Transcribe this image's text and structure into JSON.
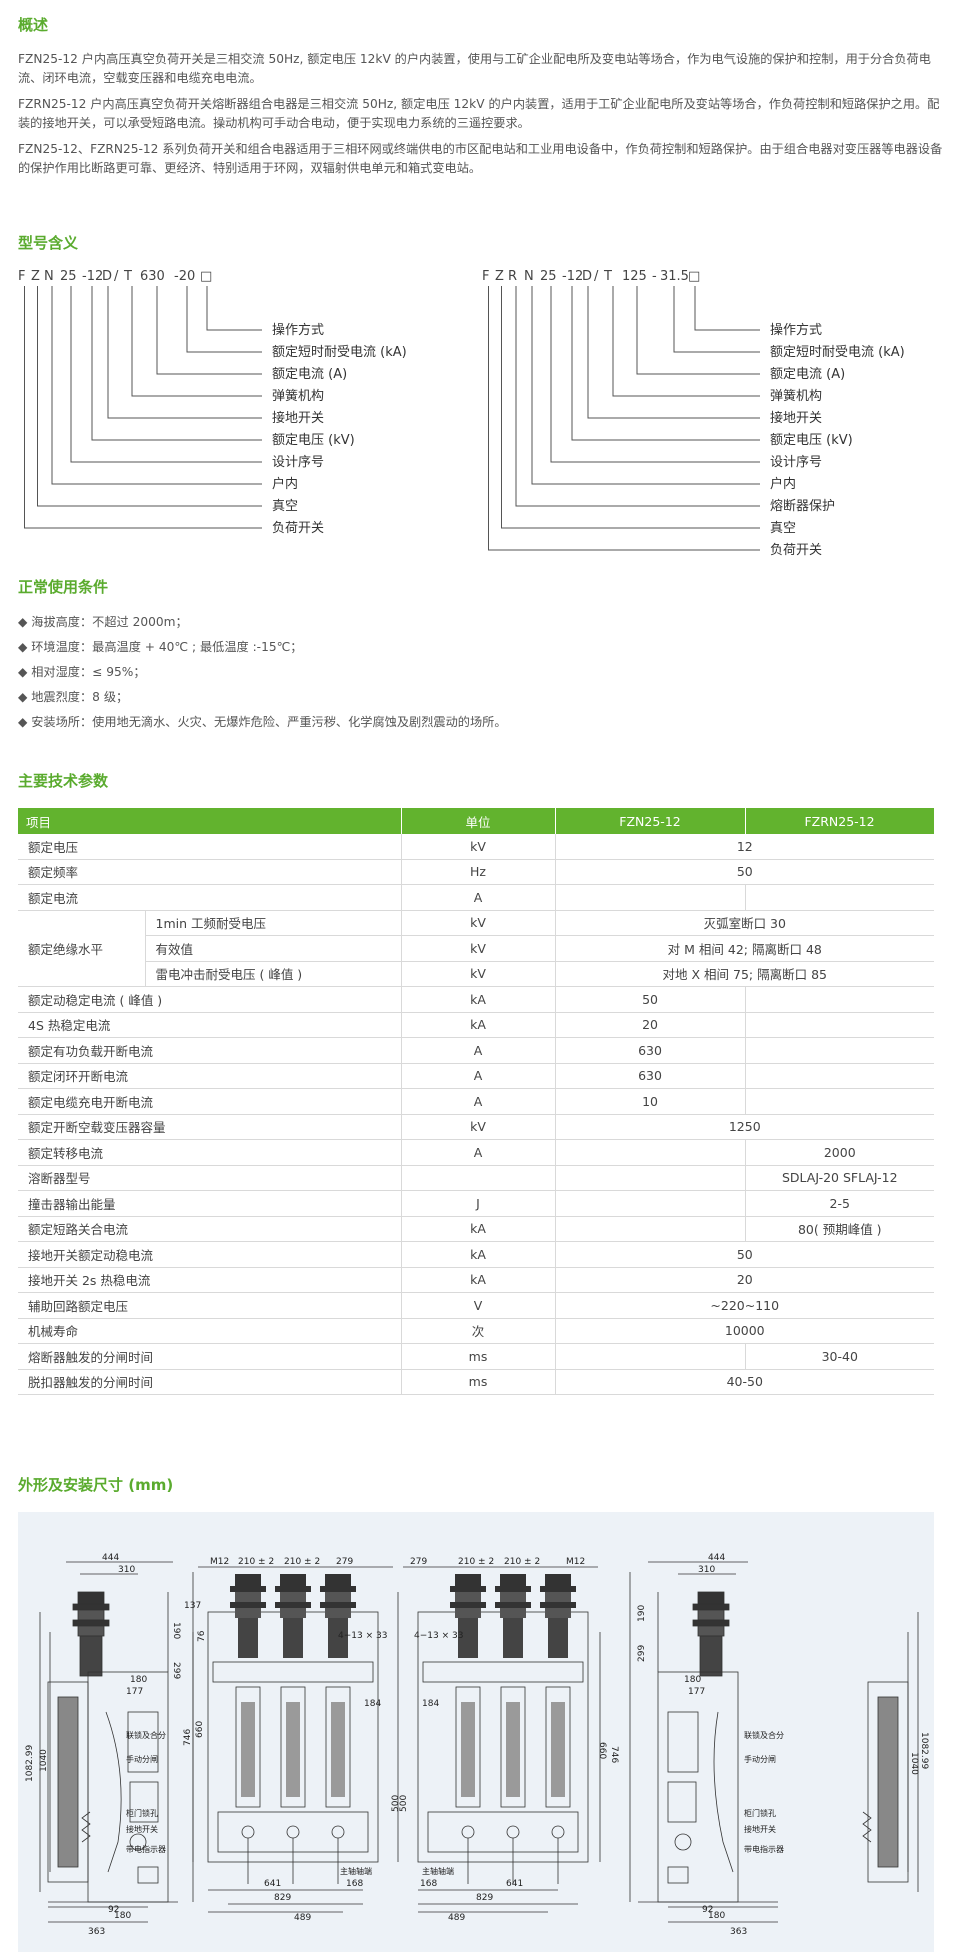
{
  "overview": {
    "title": "概述",
    "paragraphs": [
      "FZN25-12 户内高压真空负荷开关是三相交流 50Hz, 额定电压 12kV 的户内装置，使用与工矿企业配电所及变电站等场合，作为电气设施的保护和控制，用于分合负荷电流、闭环电流，空载变压器和电缆充电电流。",
      "FZRN25-12 户内高压真空负荷开关熔断器组合电器是三相交流 50Hz, 额定电压 12kV 的户内装置，适用于工矿企业配电所及变站等场合，作负荷控制和短路保护之用。配装的接地开关，可以承受短路电流。操动机构可手动合电动，便于实现电力系统的三遥控要求。",
      "FZN25-12、FZRN25-12 系列负荷开关和组合电器适用于三相环网或终端供电的市区配电站和工业用电设备中，作负荷控制和短路保护。由于组合电器对变压器等电器设备的保护作用比断路更可靠、更经济、特别适用于环网，双辐射供电单元和箱式变电站。"
    ]
  },
  "model_meaning": {
    "title": "型号含义",
    "left": {
      "code": [
        "F",
        "Z",
        "N",
        "25",
        "-12",
        "D",
        "/",
        "T",
        "630",
        "-20",
        "□"
      ],
      "labels": [
        "操作方式",
        "额定短时耐受电流 (kA)",
        "额定电流 (A)",
        "弹簧机构",
        "接地开关",
        "额定电压 (kV)",
        "设计序号",
        "户内",
        "真空",
        "负荷开关"
      ]
    },
    "right": {
      "code": [
        "F",
        "Z",
        "R",
        "N",
        "25",
        "-12",
        "D",
        "/",
        "T",
        "125",
        "-",
        "31.5",
        "□"
      ],
      "labels": [
        "操作方式",
        "额定短时耐受电流 (kA)",
        "额定电流 (A)",
        "弹簧机构",
        "接地开关",
        "额定电压 (kV)",
        "设计序号",
        "户内",
        "熔断器保护",
        "真空",
        "负荷开关"
      ]
    }
  },
  "conditions": {
    "title": "正常使用条件",
    "items": [
      "海拔高度：不超过 2000m；",
      "环境温度：最高温度 + 40℃ ; 最低温度 :-15℃；",
      "相对湿度：≤ 95%；",
      "地震烈度：8 级；",
      "安装场所：使用地无滴水、火灾、无爆炸危险、严重污秽、化学腐蚀及剧烈震动的场所。"
    ]
  },
  "specs": {
    "title": "主要技术参数",
    "headers": [
      "项目",
      "单位",
      "FZN25-12",
      "FZRN25-12"
    ],
    "rows": [
      {
        "item": "额定电压",
        "unit": "kV",
        "fzn": "12",
        "merged": true
      },
      {
        "item": "额定频率",
        "unit": "Hz",
        "fzn": "50",
        "merged": true
      },
      {
        "item": "额定电流",
        "unit": "A",
        "fzn": "",
        "fzrn": ""
      },
      {
        "item": "额定绝缘水平",
        "sub": "1min 工频耐受电压",
        "unit": "kV",
        "fzn": "灭弧室断口 30",
        "merged": true,
        "group_start": true
      },
      {
        "item": "",
        "sub": "有效值",
        "unit": "kV",
        "fzn": "对 M 相间 42; 隔离断口 48",
        "merged": true
      },
      {
        "item": "",
        "sub": "雷电冲击耐受电压 ( 峰值 )",
        "unit": "kV",
        "fzn": "对地 X 相间 75; 隔离断口 85",
        "merged": true
      },
      {
        "item": "额定动稳定电流 ( 峰值 )",
        "unit": "kA",
        "fzn": "50",
        "fzrn": ""
      },
      {
        "item": "4S 热稳定电流",
        "unit": "kA",
        "fzn": "20",
        "fzrn": ""
      },
      {
        "item": "额定有功负载开断电流",
        "unit": "A",
        "fzn": "630",
        "fzrn": ""
      },
      {
        "item": "额定闭环开断电流",
        "unit": "A",
        "fzn": "630",
        "fzrn": ""
      },
      {
        "item": "额定电缆充电开断电流",
        "unit": "A",
        "fzn": "10",
        "fzrn": ""
      },
      {
        "item": "额定开断空载变压器容量",
        "unit": "kV",
        "fzn": "1250",
        "merged": true
      },
      {
        "item": "额定转移电流",
        "unit": "A",
        "fzn": "",
        "fzrn": "2000"
      },
      {
        "item": "溶断器型号",
        "unit": "",
        "fzn": "",
        "fzrn": "SDLAJ-20 SFLAJ-12"
      },
      {
        "item": "撞击器输出能量",
        "unit": "J",
        "fzn": "",
        "fzrn": "2-5"
      },
      {
        "item": "额定短路关合电流",
        "unit": "kA",
        "fzn": "",
        "fzrn": "80( 预期峰值 )"
      },
      {
        "item": "接地开关额定动稳电流",
        "unit": "kA",
        "fzn": "50",
        "merged": true
      },
      {
        "item": "接地开关 2s 热稳电流",
        "unit": "kA",
        "fzn": "20",
        "merged": true
      },
      {
        "item": "辅助回路额定电压",
        "unit": "V",
        "fzn": "~220~110",
        "merged": true
      },
      {
        "item": "机械寿命",
        "unit": "次",
        "fzn": "10000",
        "merged": true
      },
      {
        "item": "熔断器触发的分闸时间",
        "unit": "ms",
        "fzn": "",
        "fzrn": "30-40"
      },
      {
        "item": "脱扣器触发的分闸时间",
        "unit": "ms",
        "fzn": "40-50",
        "merged": true
      }
    ]
  },
  "dimensions": {
    "title": "外形及安装尺寸 (mm)",
    "labels": {
      "d444": "444",
      "d310": "310",
      "d190": "190",
      "d299": "299",
      "d180": "180",
      "d177": "177",
      "d1082": "1082.99",
      "d1040": "1040",
      "d92": "92",
      "d363": "363",
      "m12": "M12",
      "p210a": "210 ± 2",
      "p210b": "210 ± 2",
      "d279": "279",
      "d137": "137",
      "d76": "76",
      "d4x13": "4−13 × 33",
      "d184": "184",
      "d746": "746",
      "d660": "660",
      "d500": "500",
      "d641": "641",
      "d829": "829",
      "d168": "168",
      "d489": "489",
      "t_interlock": "联锁及合分",
      "t_manual": "手动分闸",
      "t_door": "柜门锁孔",
      "t_earth": "接地开关",
      "t_charge": "带电指示器",
      "t_shaft": "主轴轴端"
    }
  }
}
